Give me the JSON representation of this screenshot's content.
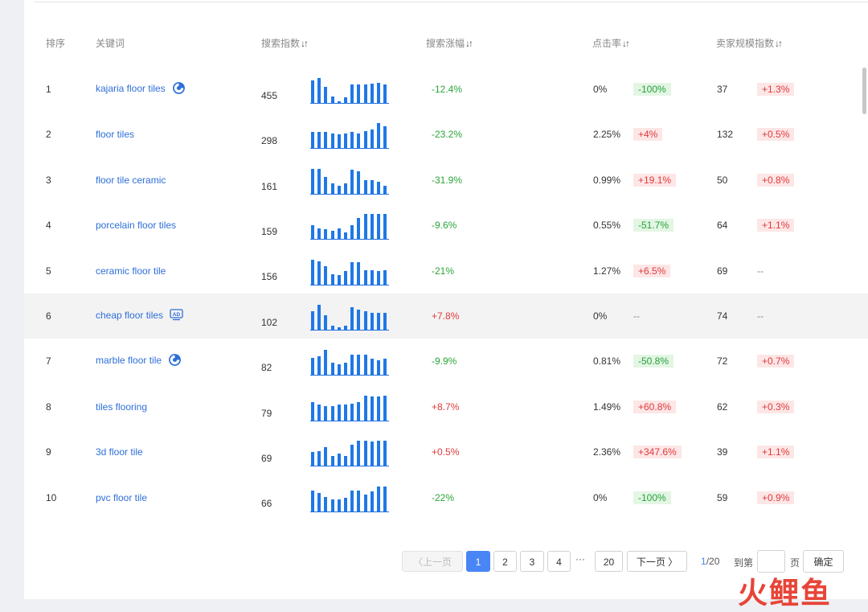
{
  "table": {
    "headers": {
      "rank": "排序",
      "keyword": "关键词",
      "search_index": "搜索指数",
      "search_growth": "搜索涨幅",
      "ctr": "点击率",
      "seller_index": "卖家规模指数"
    },
    "rows": [
      {
        "rank": "1",
        "keyword": "kajaria floor tiles",
        "icon": "pie-chart-icon",
        "search_index": "455",
        "spark": [
          0.85,
          0.95,
          0.6,
          0.25,
          0.05,
          0.2,
          0.7,
          0.7,
          0.7,
          0.72,
          0.75,
          0.7
        ],
        "growth": "-12.4%",
        "growth_color": "green",
        "ctr": "0%",
        "ctr_change": "-100%",
        "ctr_color": "green",
        "seller": "37",
        "seller_change": "+1.3%",
        "seller_color": "red"
      },
      {
        "rank": "2",
        "keyword": "floor tiles",
        "search_index": "298",
        "spark": [
          0.62,
          0.6,
          0.62,
          0.55,
          0.5,
          0.55,
          0.6,
          0.55,
          0.65,
          0.7,
          0.95,
          0.82
        ],
        "growth": "-23.2%",
        "growth_color": "green",
        "ctr": "2.25%",
        "ctr_change": "+4%",
        "ctr_color": "red",
        "seller": "132",
        "seller_change": "+0.5%",
        "seller_color": "red"
      },
      {
        "rank": "3",
        "keyword": "floor tile ceramic",
        "search_index": "161",
        "spark": [
          0.95,
          0.95,
          0.65,
          0.4,
          0.3,
          0.4,
          0.9,
          0.85,
          0.5,
          0.5,
          0.45,
          0.3
        ],
        "growth": "-31.9%",
        "growth_color": "green",
        "ctr": "0.99%",
        "ctr_change": "+19.1%",
        "ctr_color": "red",
        "seller": "50",
        "seller_change": "+0.8%",
        "seller_color": "red"
      },
      {
        "rank": "4",
        "keyword": "porcelain floor tiles",
        "search_index": "159",
        "spark": [
          0.5,
          0.4,
          0.35,
          0.3,
          0.4,
          0.25,
          0.5,
          0.8,
          0.95,
          0.95,
          0.95,
          0.95
        ],
        "growth": "-9.6%",
        "growth_color": "green",
        "ctr": "0.55%",
        "ctr_change": "-51.7%",
        "ctr_color": "green",
        "seller": "64",
        "seller_change": "+1.1%",
        "seller_color": "red"
      },
      {
        "rank": "5",
        "keyword": "ceramic floor tile",
        "search_index": "156",
        "spark": [
          0.95,
          0.88,
          0.7,
          0.4,
          0.35,
          0.5,
          0.85,
          0.85,
          0.55,
          0.55,
          0.5,
          0.55
        ],
        "growth": "-21%",
        "growth_color": "green",
        "ctr": "1.27%",
        "ctr_change": "+6.5%",
        "ctr_color": "red",
        "seller": "69",
        "seller_change": "--",
        "seller_color": "none"
      },
      {
        "rank": "6",
        "keyword": "cheap floor tiles",
        "icon": "ad-badge-icon",
        "search_index": "102",
        "spark": [
          0.7,
          0.95,
          0.55,
          0.15,
          0.1,
          0.15,
          0.85,
          0.75,
          0.7,
          0.65,
          0.65,
          0.65
        ],
        "growth": "+7.8%",
        "growth_color": "red",
        "ctr": "0%",
        "ctr_change": "--",
        "ctr_color": "none",
        "seller": "74",
        "seller_change": "--",
        "seller_color": "none",
        "highlight": true
      },
      {
        "rank": "7",
        "keyword": "marble floor tile",
        "icon": "pie-chart-icon",
        "search_index": "82",
        "spark": [
          0.65,
          0.7,
          0.95,
          0.45,
          0.4,
          0.45,
          0.75,
          0.75,
          0.75,
          0.6,
          0.55,
          0.6
        ],
        "growth": "-9.9%",
        "growth_color": "green",
        "ctr": "0.81%",
        "ctr_change": "-50.8%",
        "ctr_color": "green",
        "seller": "72",
        "seller_change": "+0.7%",
        "seller_color": "red"
      },
      {
        "rank": "8",
        "keyword": "tiles flooring",
        "search_index": "79",
        "spark": [
          0.7,
          0.6,
          0.55,
          0.55,
          0.6,
          0.6,
          0.65,
          0.7,
          0.95,
          0.9,
          0.9,
          0.95
        ],
        "growth": "+8.7%",
        "growth_color": "red",
        "ctr": "1.49%",
        "ctr_change": "+60.8%",
        "ctr_color": "red",
        "seller": "62",
        "seller_change": "+0.3%",
        "seller_color": "red"
      },
      {
        "rank": "9",
        "keyword": "3d floor tile",
        "search_index": "69",
        "spark": [
          0.5,
          0.55,
          0.7,
          0.35,
          0.45,
          0.35,
          0.8,
          0.95,
          0.95,
          0.9,
          0.95,
          0.95
        ],
        "growth": "+0.5%",
        "growth_color": "red",
        "ctr": "2.36%",
        "ctr_change": "+347.6%",
        "ctr_color": "red",
        "seller": "39",
        "seller_change": "+1.1%",
        "seller_color": "red"
      },
      {
        "rank": "10",
        "keyword": "pvc floor tile",
        "search_index": "66",
        "spark": [
          0.8,
          0.7,
          0.55,
          0.45,
          0.45,
          0.5,
          0.8,
          0.8,
          0.65,
          0.75,
          0.95,
          0.95
        ],
        "growth": "-22%",
        "growth_color": "green",
        "ctr": "0%",
        "ctr_change": "-100%",
        "ctr_color": "green",
        "seller": "59",
        "seller_change": "+0.9%",
        "seller_color": "red"
      }
    ]
  },
  "pagination": {
    "prev": "上一页",
    "pages": [
      "1",
      "2",
      "3",
      "4"
    ],
    "ellipsis": "···",
    "last": "20",
    "next": "下一页",
    "current": "1",
    "total": "/20",
    "goto_label": "到第",
    "page_unit": "页",
    "confirm": "确定",
    "goto_value": ""
  },
  "watermark": "火鲤鱼",
  "colors": {
    "link": "#2e6fd9",
    "green": "#2aa53a",
    "red": "#e23a3a",
    "accent": "#4a85f5",
    "bar": "#1f78e6"
  }
}
